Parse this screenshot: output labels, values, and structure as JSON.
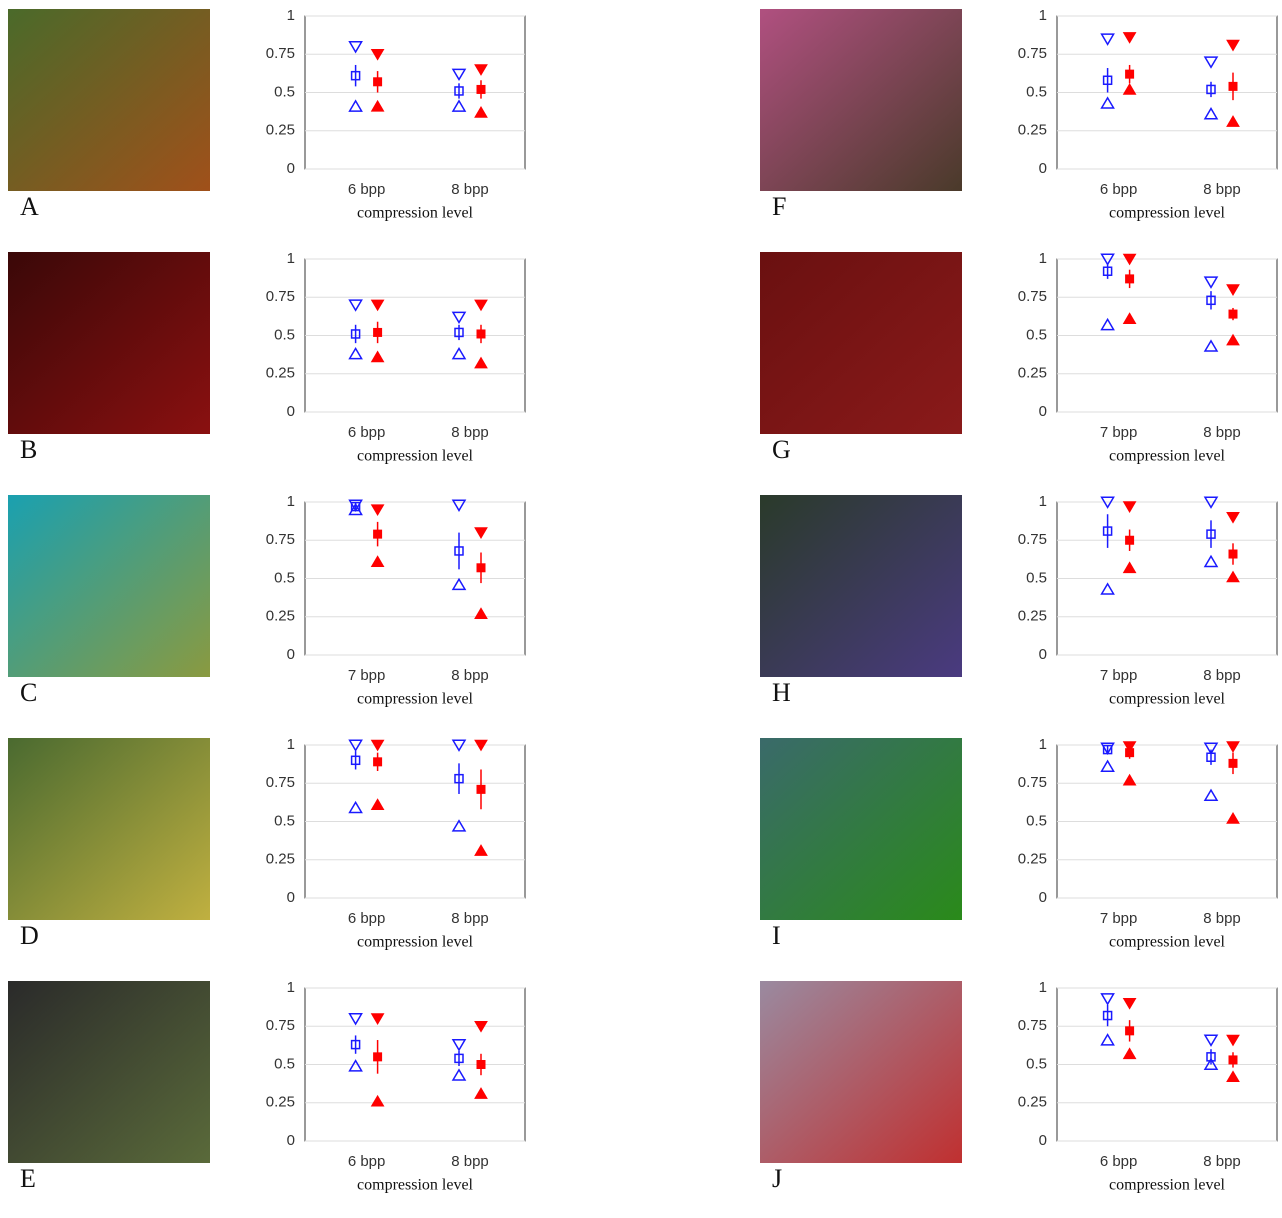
{
  "chart_data": [
    {
      "type": "errorbar",
      "label": "A",
      "categories": [
        "6 bpp",
        "8 bpp"
      ],
      "xlabel": "compression level",
      "ylim": [
        0,
        1
      ],
      "yticks": [
        0,
        0.25,
        0.5,
        0.75,
        1
      ],
      "grid": true,
      "series": [
        {
          "color": "#1a1aff",
          "mean": [
            0.61,
            0.51
          ],
          "error": [
            0.07,
            0.05
          ],
          "max": [
            0.8,
            0.62
          ],
          "min": [
            0.41,
            0.41
          ]
        },
        {
          "color": "#ff0000",
          "mean": [
            0.57,
            0.52
          ],
          "error": [
            0.07,
            0.06
          ],
          "max": [
            0.75,
            0.65
          ],
          "min": [
            0.41,
            0.37
          ]
        }
      ]
    },
    {
      "type": "errorbar",
      "label": "B",
      "categories": [
        "6 bpp",
        "8 bpp"
      ],
      "xlabel": "compression level",
      "ylim": [
        0,
        1
      ],
      "yticks": [
        0,
        0.25,
        0.5,
        0.75,
        1
      ],
      "grid": true,
      "series": [
        {
          "color": "#1a1aff",
          "mean": [
            0.51,
            0.52
          ],
          "error": [
            0.06,
            0.05
          ],
          "max": [
            0.7,
            0.62
          ],
          "min": [
            0.38,
            0.38
          ]
        },
        {
          "color": "#ff0000",
          "mean": [
            0.52,
            0.51
          ],
          "error": [
            0.07,
            0.06
          ],
          "max": [
            0.7,
            0.7
          ],
          "min": [
            0.36,
            0.32
          ]
        }
      ]
    },
    {
      "type": "errorbar",
      "label": "C",
      "categories": [
        "7 bpp",
        "8 bpp"
      ],
      "xlabel": "compression level",
      "ylim": [
        0,
        1
      ],
      "yticks": [
        0,
        0.25,
        0.5,
        0.75,
        1
      ],
      "grid": true,
      "series": [
        {
          "color": "#1a1aff",
          "mean": [
            0.97,
            0.68
          ],
          "error": [
            0.03,
            0.12
          ],
          "max": [
            0.98,
            0.98
          ],
          "min": [
            0.95,
            0.46
          ]
        },
        {
          "color": "#ff0000",
          "mean": [
            0.79,
            0.57
          ],
          "error": [
            0.08,
            0.1
          ],
          "max": [
            0.95,
            0.8
          ],
          "min": [
            0.61,
            0.27
          ]
        }
      ]
    },
    {
      "type": "errorbar",
      "label": "D",
      "categories": [
        "6 bpp",
        "8 bpp"
      ],
      "xlabel": "compression level",
      "ylim": [
        0,
        1
      ],
      "yticks": [
        0,
        0.25,
        0.5,
        0.75,
        1
      ],
      "grid": true,
      "series": [
        {
          "color": "#1a1aff",
          "mean": [
            0.9,
            0.78
          ],
          "error": [
            0.06,
            0.1
          ],
          "max": [
            1.0,
            1.0
          ],
          "min": [
            0.59,
            0.47
          ]
        },
        {
          "color": "#ff0000",
          "mean": [
            0.89,
            0.71
          ],
          "error": [
            0.06,
            0.13
          ],
          "max": [
            1.0,
            1.0
          ],
          "min": [
            0.61,
            0.31
          ]
        }
      ]
    },
    {
      "type": "errorbar",
      "label": "E",
      "categories": [
        "6 bpp",
        "8 bpp"
      ],
      "xlabel": "compression level",
      "ylim": [
        0,
        1
      ],
      "yticks": [
        0,
        0.25,
        0.5,
        0.75,
        1
      ],
      "grid": true,
      "series": [
        {
          "color": "#1a1aff",
          "mean": [
            0.63,
            0.54
          ],
          "error": [
            0.06,
            0.05
          ],
          "max": [
            0.8,
            0.63
          ],
          "min": [
            0.49,
            0.43
          ]
        },
        {
          "color": "#ff0000",
          "mean": [
            0.55,
            0.5
          ],
          "error": [
            0.11,
            0.07
          ],
          "max": [
            0.8,
            0.75
          ],
          "min": [
            0.26,
            0.31
          ]
        }
      ]
    },
    {
      "type": "errorbar",
      "label": "F",
      "categories": [
        "6 bpp",
        "8 bpp"
      ],
      "xlabel": "compression level",
      "ylim": [
        0,
        1
      ],
      "yticks": [
        0,
        0.25,
        0.5,
        0.75,
        1
      ],
      "grid": true,
      "series": [
        {
          "color": "#1a1aff",
          "mean": [
            0.58,
            0.52
          ],
          "error": [
            0.08,
            0.05
          ],
          "max": [
            0.85,
            0.7
          ],
          "min": [
            0.43,
            0.36
          ]
        },
        {
          "color": "#ff0000",
          "mean": [
            0.62,
            0.54
          ],
          "error": [
            0.06,
            0.09
          ],
          "max": [
            0.86,
            0.81
          ],
          "min": [
            0.52,
            0.31
          ]
        }
      ]
    },
    {
      "type": "errorbar",
      "label": "G",
      "categories": [
        "7 bpp",
        "8 bpp"
      ],
      "xlabel": "compression level",
      "ylim": [
        0,
        1
      ],
      "yticks": [
        0,
        0.25,
        0.5,
        0.75,
        1
      ],
      "grid": true,
      "series": [
        {
          "color": "#1a1aff",
          "mean": [
            0.92,
            0.73
          ],
          "error": [
            0.05,
            0.06
          ],
          "max": [
            1.0,
            0.85
          ],
          "min": [
            0.57,
            0.43
          ]
        },
        {
          "color": "#ff0000",
          "mean": [
            0.87,
            0.64
          ],
          "error": [
            0.06,
            0.04
          ],
          "max": [
            1.0,
            0.8
          ],
          "min": [
            0.61,
            0.47
          ]
        }
      ]
    },
    {
      "type": "errorbar",
      "label": "H",
      "categories": [
        "7 bpp",
        "8 bpp"
      ],
      "xlabel": "compression level",
      "ylim": [
        0,
        1
      ],
      "yticks": [
        0,
        0.25,
        0.5,
        0.75,
        1
      ],
      "grid": true,
      "series": [
        {
          "color": "#1a1aff",
          "mean": [
            0.81,
            0.79
          ],
          "error": [
            0.11,
            0.09
          ],
          "max": [
            1.0,
            1.0
          ],
          "min": [
            0.43,
            0.61
          ]
        },
        {
          "color": "#ff0000",
          "mean": [
            0.75,
            0.66
          ],
          "error": [
            0.07,
            0.07
          ],
          "max": [
            0.97,
            0.9
          ],
          "min": [
            0.57,
            0.51
          ]
        }
      ]
    },
    {
      "type": "errorbar",
      "label": "I",
      "categories": [
        "7 bpp",
        "8 bpp"
      ],
      "xlabel": "compression level",
      "ylim": [
        0,
        1
      ],
      "yticks": [
        0,
        0.25,
        0.5,
        0.75,
        1
      ],
      "grid": true,
      "series": [
        {
          "color": "#1a1aff",
          "mean": [
            0.97,
            0.92
          ],
          "error": [
            0.03,
            0.05
          ],
          "max": [
            0.98,
            0.98
          ],
          "min": [
            0.86,
            0.67
          ]
        },
        {
          "color": "#ff0000",
          "mean": [
            0.95,
            0.88
          ],
          "error": [
            0.04,
            0.07
          ],
          "max": [
            0.99,
            0.99
          ],
          "min": [
            0.77,
            0.52
          ]
        }
      ]
    },
    {
      "type": "errorbar",
      "label": "J",
      "categories": [
        "6 bpp",
        "8 bpp"
      ],
      "xlabel": "compression level",
      "ylim": [
        0,
        1
      ],
      "yticks": [
        0,
        0.25,
        0.5,
        0.75,
        1
      ],
      "grid": true,
      "series": [
        {
          "color": "#1a1aff",
          "mean": [
            0.82,
            0.55
          ],
          "error": [
            0.07,
            0.05
          ],
          "max": [
            0.93,
            0.66
          ],
          "min": [
            0.66,
            0.5
          ]
        },
        {
          "color": "#ff0000",
          "mean": [
            0.72,
            0.53
          ],
          "error": [
            0.07,
            0.05
          ],
          "max": [
            0.9,
            0.66
          ],
          "min": [
            0.57,
            0.42
          ]
        }
      ]
    }
  ]
}
